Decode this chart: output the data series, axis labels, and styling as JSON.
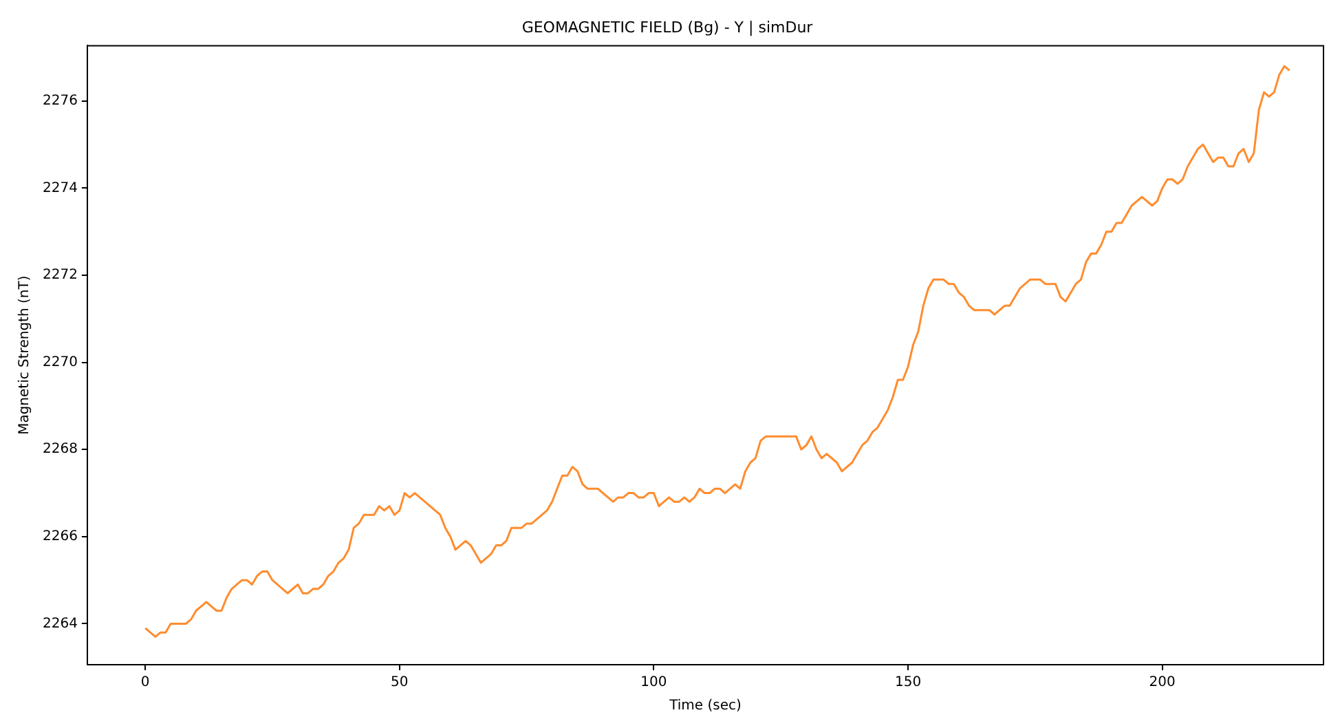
{
  "chart_data": {
    "type": "line",
    "title": "GEOMAGNETIC FIELD (Bg) - Y | simDur",
    "xlabel": "Time (sec)",
    "ylabel": "Magnetic Strength (nT)",
    "xlim": [
      -11.4,
      231.7
    ],
    "ylim": [
      2263.06,
      2277.27
    ],
    "xticks": [
      0,
      50,
      100,
      150,
      200
    ],
    "yticks": [
      2264,
      2266,
      2268,
      2270,
      2272,
      2274,
      2276
    ],
    "grid": false,
    "legend": false,
    "marker": "none",
    "line_style": "solid",
    "series": [
      {
        "color": "#ff8c2e",
        "x": [
          0,
          1,
          2,
          3,
          4,
          5,
          8,
          9,
          10,
          12,
          14,
          15,
          16,
          17,
          19,
          20,
          21,
          22,
          23,
          24,
          25,
          27,
          28,
          30,
          31,
          32,
          33,
          34,
          35,
          36,
          37,
          38,
          39,
          40,
          41,
          42,
          43,
          45,
          46,
          47,
          48,
          49,
          50,
          51,
          52,
          53,
          58,
          59,
          60,
          61,
          63,
          64,
          66,
          68,
          69,
          70,
          71,
          72,
          74,
          75,
          76,
          79,
          80,
          81,
          82,
          83,
          84,
          85,
          86,
          87,
          89,
          92,
          93,
          94,
          95,
          96,
          97,
          98,
          99,
          100,
          101,
          102,
          103,
          104,
          105,
          106,
          107,
          108,
          109,
          110,
          111,
          112,
          113,
          114,
          116,
          117,
          118,
          119,
          120,
          121,
          122,
          128,
          129,
          130,
          131,
          132,
          133,
          134,
          136,
          137,
          139,
          140,
          141,
          142,
          143,
          144,
          146,
          147,
          148,
          149,
          150,
          151,
          152,
          153,
          154,
          155,
          157,
          158,
          159,
          160,
          161,
          162,
          163,
          166,
          167,
          169,
          170,
          171,
          172,
          174,
          176,
          177,
          179,
          180,
          181,
          183,
          184,
          185,
          186,
          187,
          188,
          189,
          190,
          191,
          192,
          194,
          196,
          198,
          199,
          200,
          201,
          202,
          203,
          204,
          205,
          207,
          208,
          210,
          211,
          212,
          213,
          214,
          215,
          216,
          217,
          218,
          219,
          220,
          221,
          222,
          223,
          224,
          225
        ],
        "values": [
          2263.9,
          2263.8,
          2263.7,
          2263.8,
          2263.8,
          2264.0,
          2264.0,
          2264.1,
          2264.3,
          2264.5,
          2264.3,
          2264.3,
          2264.6,
          2264.8,
          2265.0,
          2265.0,
          2264.9,
          2265.1,
          2265.2,
          2265.2,
          2265.0,
          2264.8,
          2264.7,
          2264.9,
          2264.7,
          2264.7,
          2264.8,
          2264.8,
          2264.9,
          2265.1,
          2265.2,
          2265.4,
          2265.5,
          2265.7,
          2266.2,
          2266.3,
          2266.5,
          2266.5,
          2266.7,
          2266.6,
          2266.7,
          2266.5,
          2266.6,
          2267.0,
          2266.9,
          2267.0,
          2266.5,
          2266.2,
          2266.0,
          2265.7,
          2265.9,
          2265.8,
          2265.4,
          2265.6,
          2265.8,
          2265.8,
          2265.9,
          2266.2,
          2266.2,
          2266.3,
          2266.3,
          2266.6,
          2266.8,
          2267.1,
          2267.4,
          2267.4,
          2267.6,
          2267.5,
          2267.2,
          2267.1,
          2267.1,
          2266.8,
          2266.9,
          2266.9,
          2267.0,
          2267.0,
          2266.9,
          2266.9,
          2267.0,
          2267.0,
          2266.7,
          2266.8,
          2266.9,
          2266.8,
          2266.8,
          2266.9,
          2266.8,
          2266.9,
          2267.1,
          2267.0,
          2267.0,
          2267.1,
          2267.1,
          2267.0,
          2267.2,
          2267.1,
          2267.5,
          2267.7,
          2267.8,
          2268.2,
          2268.3,
          2268.3,
          2268.0,
          2268.1,
          2268.3,
          2268.0,
          2267.8,
          2267.9,
          2267.7,
          2267.5,
          2267.7,
          2267.9,
          2268.1,
          2268.2,
          2268.4,
          2268.5,
          2268.9,
          2269.2,
          2269.6,
          2269.6,
          2269.9,
          2270.4,
          2270.7,
          2271.3,
          2271.7,
          2271.9,
          2271.9,
          2271.8,
          2271.8,
          2271.6,
          2271.5,
          2271.3,
          2271.2,
          2271.2,
          2271.1,
          2271.3,
          2271.3,
          2271.5,
          2271.7,
          2271.9,
          2271.9,
          2271.8,
          2271.8,
          2271.5,
          2271.4,
          2271.8,
          2271.9,
          2272.3,
          2272.5,
          2272.5,
          2272.7,
          2273.0,
          2273.0,
          2273.2,
          2273.2,
          2273.6,
          2273.8,
          2273.6,
          2273.7,
          2274.0,
          2274.2,
          2274.2,
          2274.1,
          2274.2,
          2274.5,
          2274.9,
          2275.0,
          2274.6,
          2274.7,
          2274.7,
          2274.5,
          2274.5,
          2274.8,
          2274.9,
          2274.6,
          2274.8,
          2275.8,
          2276.2,
          2276.1,
          2276.2,
          2276.6,
          2276.8,
          2276.7
        ]
      }
    ]
  }
}
